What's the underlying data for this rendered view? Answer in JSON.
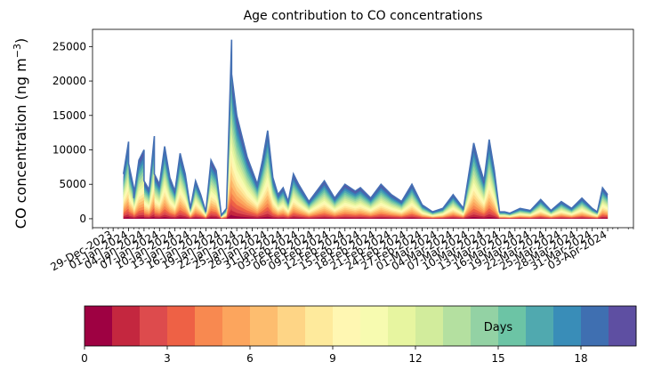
{
  "chart_data": [
    {
      "type": "area",
      "title": "Age contribution to CO concentrations",
      "ylabel_text": "CO concentration (ng m",
      "ylabel_sup": "−3",
      "ylabel_close": ")",
      "xlabel": "",
      "ylim": [
        -1300,
        27500
      ],
      "xlim": [
        "2023-12-25",
        "2024-04-08"
      ],
      "yticks": [
        0,
        5000,
        10000,
        15000,
        20000,
        25000
      ],
      "ytick_labels": [
        "0",
        "5000",
        "10000",
        "15000",
        "20000",
        "25000"
      ],
      "xtick_labels": [
        "29-Dec-2023",
        "01-Jan-2024",
        "04-Jan-2024",
        "07-Jan-2024",
        "10-Jan-2024",
        "13-Jan-2024",
        "16-Jan-2024",
        "19-Jan-2024",
        "22-Jan-2024",
        "25-Jan-2024",
        "28-Jan-2024",
        "31-Jan-2024",
        "03-Feb-2024",
        "06-Feb-2024",
        "09-Feb-2024",
        "12-Feb-2024",
        "15-Feb-2024",
        "18-Feb-2024",
        "21-Feb-2024",
        "24-Feb-2024",
        "27-Feb-2024",
        "01-Mar-2024",
        "04-Mar-2024",
        "07-Mar-2024",
        "10-Mar-2024",
        "13-Mar-2024",
        "16-Mar-2024",
        "19-Mar-2024",
        "22-Mar-2024",
        "25-Mar-2024",
        "28-Mar-2024",
        "31-Mar-2024",
        "03-Apr-2024"
      ],
      "stack_series_count": 20,
      "stack_series_unit": "Days",
      "total_series": {
        "x": [
          "2023-12-31",
          "2024-01-01",
          "2024-01-01",
          "2024-01-02",
          "2024-01-02",
          "2024-01-03",
          "2024-01-04",
          "2024-01-04",
          "2024-01-05",
          "2024-01-06",
          "2024-01-06",
          "2024-01-07",
          "2024-01-08",
          "2024-01-09",
          "2024-01-10",
          "2024-01-11",
          "2024-01-12",
          "2024-01-13",
          "2024-01-14",
          "2024-01-15",
          "2024-01-16",
          "2024-01-17",
          "2024-01-18",
          "2024-01-19",
          "2024-01-20",
          "2024-01-21",
          "2024-01-21",
          "2024-01-22",
          "2024-01-23",
          "2024-01-24",
          "2024-01-25",
          "2024-01-26",
          "2024-01-27",
          "2024-01-28",
          "2024-01-29",
          "2024-01-30",
          "2024-01-31",
          "2024-02-01",
          "2024-02-02",
          "2024-02-03",
          "2024-02-05",
          "2024-02-07",
          "2024-02-08",
          "2024-02-10",
          "2024-02-12",
          "2024-02-14",
          "2024-02-15",
          "2024-02-17",
          "2024-02-19",
          "2024-02-21",
          "2024-02-23",
          "2024-02-25",
          "2024-02-27",
          "2024-02-29",
          "2024-03-02",
          "2024-03-04",
          "2024-03-06",
          "2024-03-08",
          "2024-03-09",
          "2024-03-10",
          "2024-03-11",
          "2024-03-12",
          "2024-03-13",
          "2024-03-14",
          "2024-03-15",
          "2024-03-17",
          "2024-03-19",
          "2024-03-21",
          "2024-03-23",
          "2024-03-25",
          "2024-03-27",
          "2024-03-29",
          "2024-03-31",
          "2024-04-01",
          "2024-04-02",
          "2024-04-03"
        ],
        "y": [
          6500,
          11200,
          8000,
          4500,
          3000,
          8500,
          10000,
          5500,
          4200,
          12000,
          6500,
          5000,
          10500,
          6000,
          4000,
          9500,
          6500,
          1500,
          5500,
          3500,
          1000,
          8500,
          7000,
          500,
          1500,
          26000,
          21000,
          15000,
          12000,
          9000,
          7000,
          5000,
          8500,
          12800,
          6000,
          3500,
          4500,
          2500,
          6500,
          5000,
          2500,
          4500,
          5500,
          3000,
          5000,
          4000,
          4500,
          3000,
          5000,
          3500,
          2500,
          5000,
          2000,
          1000,
          1500,
          3500,
          1500,
          11000,
          8000,
          5500,
          11500,
          7000,
          1000,
          1000,
          800,
          1500,
          1200,
          2800,
          1200,
          2500,
          1500,
          3000,
          1500,
          1000,
          4500,
          3500
        ]
      }
    },
    {
      "type": "heatmap",
      "subtype": "colorbar",
      "label": "Days",
      "range": [
        0,
        20
      ],
      "ticks": [
        0,
        3,
        6,
        9,
        12,
        15,
        18
      ],
      "tick_labels": [
        "0",
        "3",
        "6",
        "9",
        "12",
        "15",
        "18"
      ],
      "colors": [
        "#9e0142",
        "#c4273f",
        "#dd4b4d",
        "#ee6145",
        "#f88950",
        "#fca55d",
        "#fdbd6f",
        "#fed586",
        "#feea9c",
        "#fff7b2",
        "#f7fbb0",
        "#e7f5a0",
        "#d2ec9c",
        "#b4e0a0",
        "#93d2a4",
        "#6cc4a5",
        "#50a9af",
        "#398db8",
        "#3f6fb1",
        "#5e4fa2"
      ]
    }
  ]
}
